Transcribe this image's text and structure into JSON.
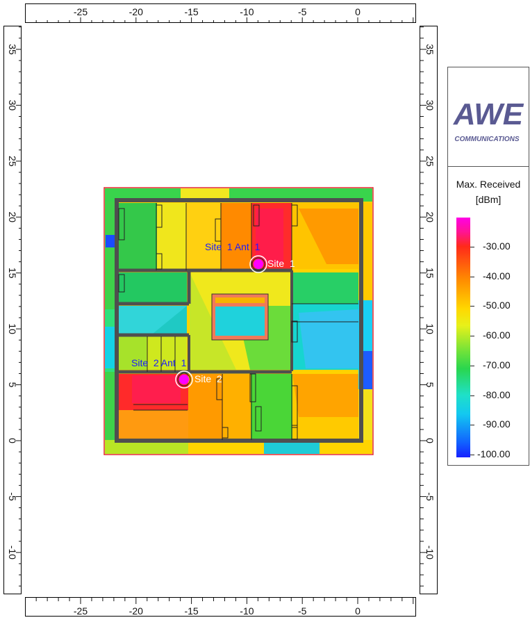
{
  "rulers": {
    "x_labels": [
      "-25",
      "-20",
      "-15",
      "-10",
      "-5",
      "0"
    ],
    "y_labels": [
      "35",
      "30",
      "25",
      "20",
      "15",
      "10",
      "5",
      "0",
      "-5",
      "-10"
    ]
  },
  "map": {
    "sites": [
      {
        "antenna_label": "Site  1 Ant  1",
        "site_label": "Site  1"
      },
      {
        "antenna_label": "Site  2 Ant  1",
        "site_label": "Site  2"
      }
    ]
  },
  "legend": {
    "logo_text": "AWE",
    "logo_sub": "COMMUNICATIONS",
    "title": "Max. Received",
    "unit": "[dBm]",
    "scale": [
      "-30.00",
      "-40.00",
      "-50.00",
      "-60.00",
      "-70.00",
      "-80.00",
      "-90.00",
      "-100.00"
    ]
  },
  "colors": {
    "frame": "#e3262b",
    "marker": "#ff00ff",
    "label_blue": "#1a1aff",
    "label_white": "#ffffff",
    "wall": "#4f4f4f"
  }
}
